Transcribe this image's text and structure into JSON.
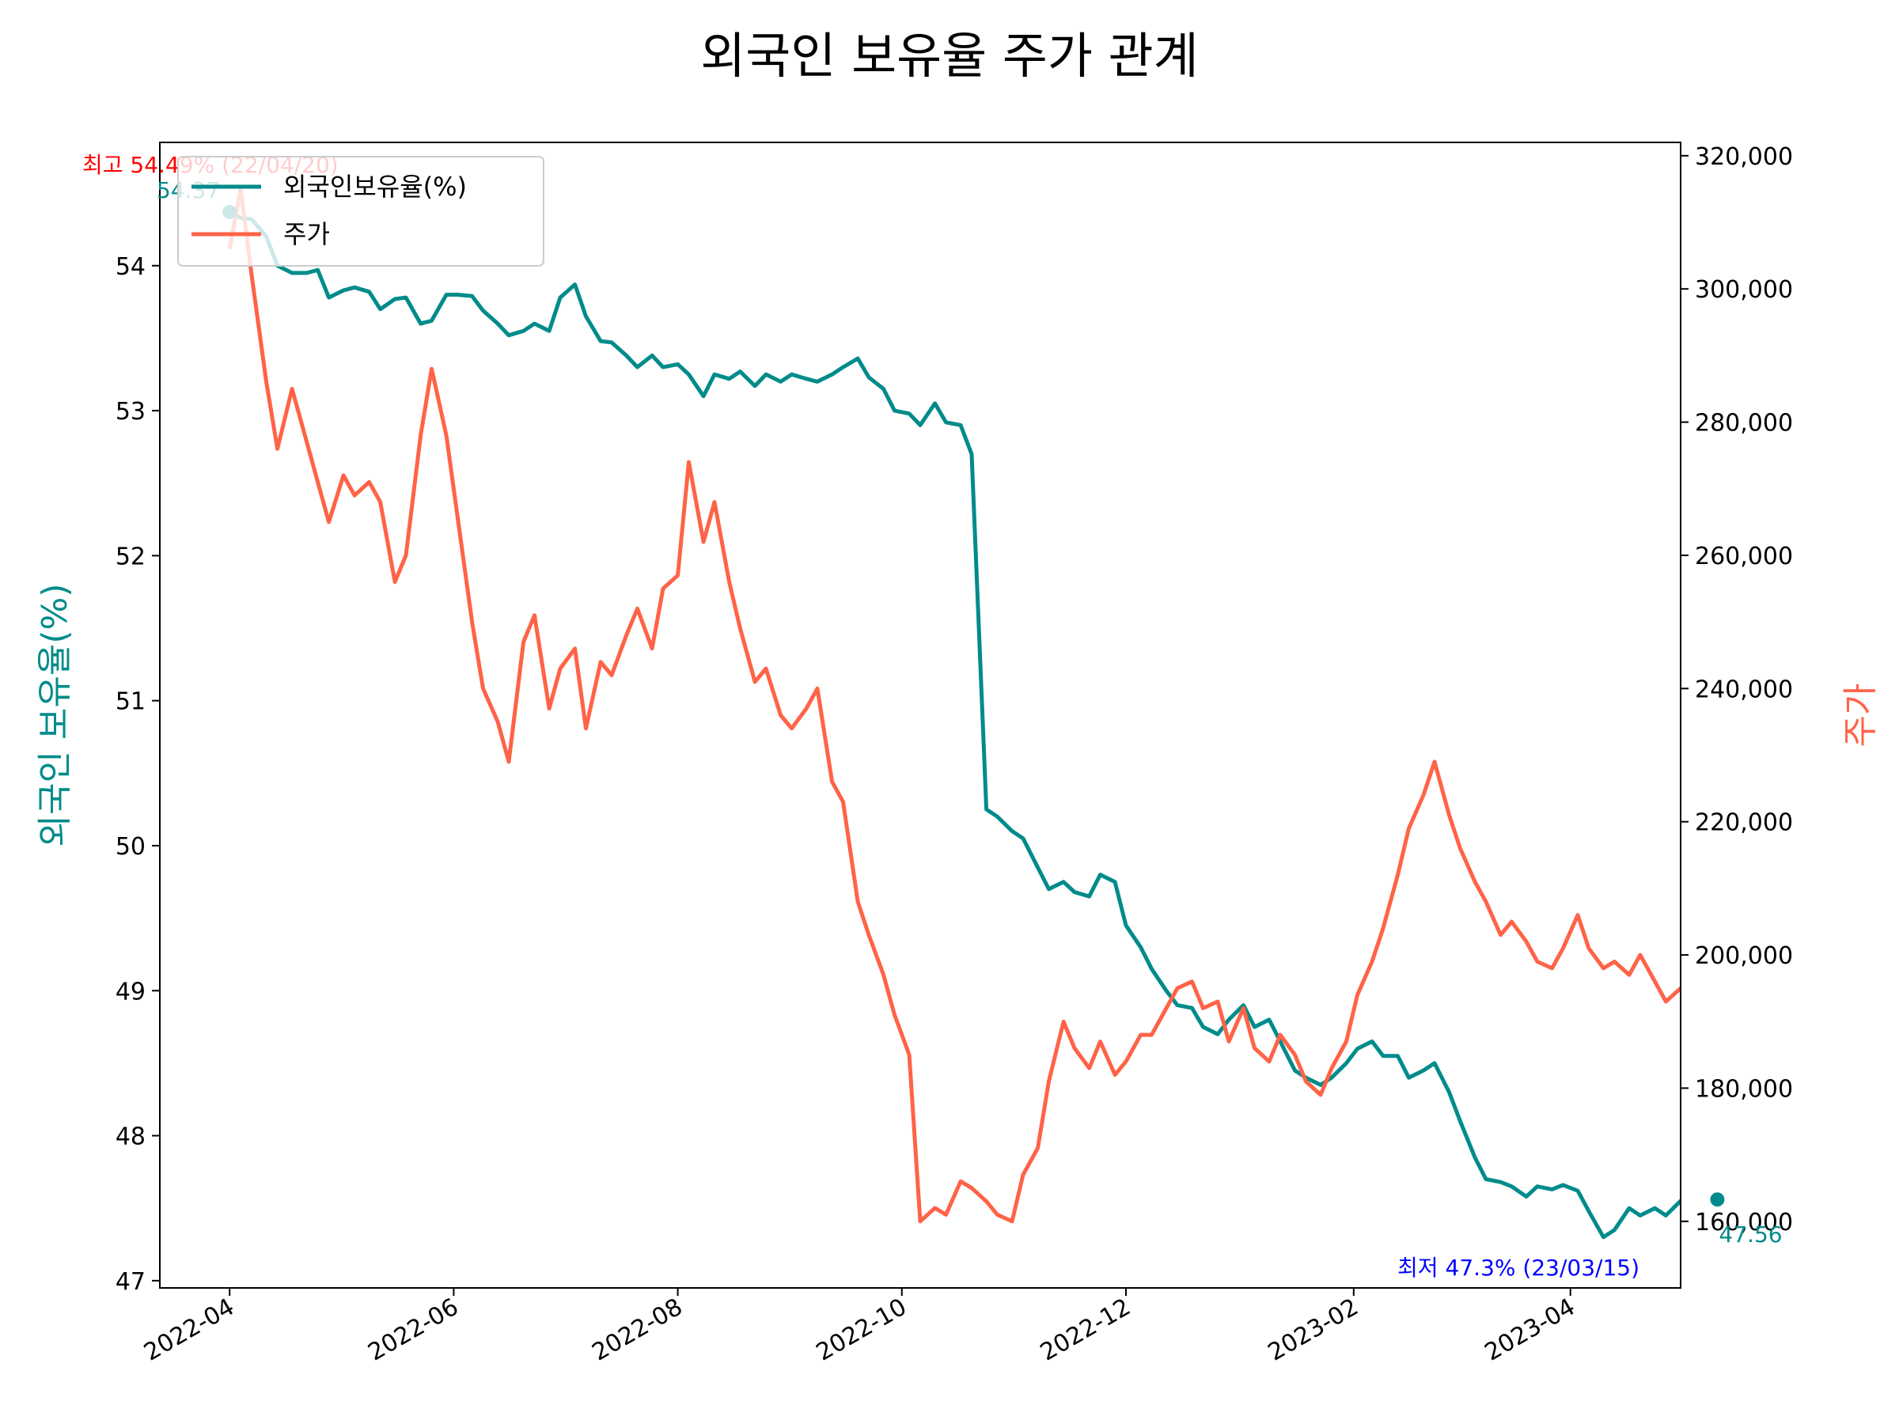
{
  "chart_data": {
    "type": "line",
    "title": "외국인 보유율 주가 관계",
    "ylabel": "외국인 보유율(%)",
    "ylabel_right": "주가",
    "x_ticks": [
      "2022-04",
      "2022-06",
      "2022-08",
      "2022-10",
      "2022-12",
      "2023-02",
      "2023-04"
    ],
    "y_ticks": [
      "47",
      "48",
      "49",
      "50",
      "51",
      "52",
      "53",
      "54"
    ],
    "y2_ticks": [
      "160,000",
      "180,000",
      "200,000",
      "220,000",
      "240,000",
      "260,000",
      "280,000",
      "300,000",
      "320,000"
    ],
    "ylim": [
      46.95,
      54.85
    ],
    "y2lim": [
      150000,
      322000
    ],
    "xlim": [
      "2022-03-13",
      "2023-05-01"
    ],
    "legend_position": "upper left",
    "colors": {
      "ownership": "#008b8b",
      "price": "#ff6347",
      "max": "#ff0000",
      "min": "#0000ff"
    },
    "series": [
      {
        "name": "외국인보유율(%)",
        "axis": "left",
        "points": [
          [
            "2022-04-01",
            54.37
          ],
          [
            "2022-04-04",
            54.33
          ],
          [
            "2022-04-07",
            54.32
          ],
          [
            "2022-04-11",
            54.2
          ],
          [
            "2022-04-14",
            54.0
          ],
          [
            "2022-04-18",
            53.95
          ],
          [
            "2022-04-22",
            53.95
          ],
          [
            "2022-04-25",
            53.97
          ],
          [
            "2022-04-28",
            53.78
          ],
          [
            "2022-05-02",
            53.83
          ],
          [
            "2022-05-05",
            53.85
          ],
          [
            "2022-05-09",
            53.82
          ],
          [
            "2022-05-12",
            53.7
          ],
          [
            "2022-05-16",
            53.77
          ],
          [
            "2022-05-19",
            53.78
          ],
          [
            "2022-05-23",
            53.6
          ],
          [
            "2022-05-26",
            53.62
          ],
          [
            "2022-05-30",
            53.8
          ],
          [
            "2022-06-02",
            53.8
          ],
          [
            "2022-06-06",
            53.79
          ],
          [
            "2022-06-09",
            53.69
          ],
          [
            "2022-06-13",
            53.6
          ],
          [
            "2022-06-16",
            53.52
          ],
          [
            "2022-06-20",
            53.55
          ],
          [
            "2022-06-23",
            53.6
          ],
          [
            "2022-06-27",
            53.55
          ],
          [
            "2022-06-30",
            53.78
          ],
          [
            "2022-07-04",
            53.87
          ],
          [
            "2022-07-07",
            53.65
          ],
          [
            "2022-07-11",
            53.48
          ],
          [
            "2022-07-14",
            53.47
          ],
          [
            "2022-07-18",
            53.38
          ],
          [
            "2022-07-21",
            53.3
          ],
          [
            "2022-07-25",
            53.38
          ],
          [
            "2022-07-28",
            53.3
          ],
          [
            "2022-08-01",
            53.32
          ],
          [
            "2022-08-04",
            53.25
          ],
          [
            "2022-08-08",
            53.1
          ],
          [
            "2022-08-11",
            53.25
          ],
          [
            "2022-08-15",
            53.22
          ],
          [
            "2022-08-18",
            53.27
          ],
          [
            "2022-08-22",
            53.17
          ],
          [
            "2022-08-25",
            53.25
          ],
          [
            "2022-08-29",
            53.2
          ],
          [
            "2022-09-01",
            53.25
          ],
          [
            "2022-09-05",
            53.22
          ],
          [
            "2022-09-08",
            53.2
          ],
          [
            "2022-09-12",
            53.25
          ],
          [
            "2022-09-15",
            53.3
          ],
          [
            "2022-09-19",
            53.36
          ],
          [
            "2022-09-22",
            53.23
          ],
          [
            "2022-09-26",
            53.15
          ],
          [
            "2022-09-29",
            53.0
          ],
          [
            "2022-10-03",
            52.98
          ],
          [
            "2022-10-06",
            52.9
          ],
          [
            "2022-10-10",
            53.05
          ],
          [
            "2022-10-13",
            52.92
          ],
          [
            "2022-10-17",
            52.9
          ],
          [
            "2022-10-20",
            52.7
          ],
          [
            "2022-10-24",
            50.25
          ],
          [
            "2022-10-27",
            50.2
          ],
          [
            "2022-10-31",
            50.1
          ],
          [
            "2022-11-03",
            50.05
          ],
          [
            "2022-11-07",
            49.85
          ],
          [
            "2022-11-10",
            49.7
          ],
          [
            "2022-11-14",
            49.75
          ],
          [
            "2022-11-17",
            49.68
          ],
          [
            "2022-11-21",
            49.65
          ],
          [
            "2022-11-24",
            49.8
          ],
          [
            "2022-11-28",
            49.75
          ],
          [
            "2022-12-01",
            49.45
          ],
          [
            "2022-12-05",
            49.3
          ],
          [
            "2022-12-08",
            49.15
          ],
          [
            "2022-12-12",
            49.0
          ],
          [
            "2022-12-15",
            48.9
          ],
          [
            "2022-12-19",
            48.88
          ],
          [
            "2022-12-22",
            48.75
          ],
          [
            "2022-12-26",
            48.7
          ],
          [
            "2022-12-29",
            48.8
          ],
          [
            "2023-01-02",
            48.9
          ],
          [
            "2023-01-05",
            48.75
          ],
          [
            "2023-01-09",
            48.8
          ],
          [
            "2023-01-12",
            48.65
          ],
          [
            "2023-01-16",
            48.45
          ],
          [
            "2023-01-19",
            48.4
          ],
          [
            "2023-01-23",
            48.35
          ],
          [
            "2023-01-26",
            48.4
          ],
          [
            "2023-01-30",
            48.5
          ],
          [
            "2023-02-02",
            48.6
          ],
          [
            "2023-02-06",
            48.65
          ],
          [
            "2023-02-09",
            48.55
          ],
          [
            "2023-02-13",
            48.55
          ],
          [
            "2023-02-16",
            48.4
          ],
          [
            "2023-02-20",
            48.45
          ],
          [
            "2023-02-23",
            48.5
          ],
          [
            "2023-02-27",
            48.3
          ],
          [
            "2023-03-02",
            48.1
          ],
          [
            "2023-03-06",
            47.85
          ],
          [
            "2023-03-09",
            47.7
          ],
          [
            "2023-03-13",
            47.68
          ],
          [
            "2023-03-16",
            47.65
          ],
          [
            "2023-03-20",
            47.58
          ],
          [
            "2023-03-23",
            47.65
          ],
          [
            "2023-03-27",
            47.63
          ],
          [
            "2023-03-30",
            47.66
          ],
          [
            "2023-04-03",
            47.62
          ],
          [
            "2023-04-06",
            47.48
          ],
          [
            "2023-04-10",
            47.3
          ],
          [
            "2023-04-13",
            47.35
          ],
          [
            "2023-04-17",
            47.5
          ],
          [
            "2023-04-20",
            47.45
          ],
          [
            "2023-04-24",
            47.5
          ],
          [
            "2023-04-27",
            47.45
          ],
          [
            "2023-05-01",
            47.55
          ],
          [
            "2023-05-04",
            47.45
          ],
          [
            "2023-05-08",
            47.62
          ],
          [
            "2023-05-11",
            47.56
          ]
        ]
      },
      {
        "name": "주가",
        "axis": "right",
        "points": [
          [
            "2022-04-01",
            306000
          ],
          [
            "2022-04-04",
            315000
          ],
          [
            "2022-04-07",
            302000
          ],
          [
            "2022-04-11",
            286000
          ],
          [
            "2022-04-14",
            276000
          ],
          [
            "2022-04-18",
            285000
          ],
          [
            "2022-04-22",
            277000
          ],
          [
            "2022-04-25",
            271000
          ],
          [
            "2022-04-28",
            265000
          ],
          [
            "2022-05-02",
            272000
          ],
          [
            "2022-05-05",
            269000
          ],
          [
            "2022-05-09",
            271000
          ],
          [
            "2022-05-12",
            268000
          ],
          [
            "2022-05-16",
            256000
          ],
          [
            "2022-05-19",
            260000
          ],
          [
            "2022-05-23",
            278000
          ],
          [
            "2022-05-26",
            288000
          ],
          [
            "2022-05-30",
            278000
          ],
          [
            "2022-06-02",
            266000
          ],
          [
            "2022-06-06",
            250000
          ],
          [
            "2022-06-09",
            240000
          ],
          [
            "2022-06-13",
            235000
          ],
          [
            "2022-06-16",
            229000
          ],
          [
            "2022-06-20",
            247000
          ],
          [
            "2022-06-23",
            251000
          ],
          [
            "2022-06-27",
            237000
          ],
          [
            "2022-06-30",
            243000
          ],
          [
            "2022-07-04",
            246000
          ],
          [
            "2022-07-07",
            234000
          ],
          [
            "2022-07-11",
            244000
          ],
          [
            "2022-07-14",
            242000
          ],
          [
            "2022-07-18",
            248000
          ],
          [
            "2022-07-21",
            252000
          ],
          [
            "2022-07-25",
            246000
          ],
          [
            "2022-07-28",
            255000
          ],
          [
            "2022-08-01",
            257000
          ],
          [
            "2022-08-04",
            274000
          ],
          [
            "2022-08-08",
            262000
          ],
          [
            "2022-08-11",
            268000
          ],
          [
            "2022-08-15",
            256000
          ],
          [
            "2022-08-18",
            249000
          ],
          [
            "2022-08-22",
            241000
          ],
          [
            "2022-08-25",
            243000
          ],
          [
            "2022-08-29",
            236000
          ],
          [
            "2022-09-01",
            234000
          ],
          [
            "2022-09-05",
            237000
          ],
          [
            "2022-09-08",
            240000
          ],
          [
            "2022-09-12",
            226000
          ],
          [
            "2022-09-15",
            223000
          ],
          [
            "2022-09-19",
            208000
          ],
          [
            "2022-09-22",
            203000
          ],
          [
            "2022-09-26",
            197000
          ],
          [
            "2022-09-29",
            191000
          ],
          [
            "2022-10-03",
            185000
          ],
          [
            "2022-10-06",
            160000
          ],
          [
            "2022-10-10",
            162000
          ],
          [
            "2022-10-13",
            161000
          ],
          [
            "2022-10-17",
            166000
          ],
          [
            "2022-10-20",
            165000
          ],
          [
            "2022-10-24",
            163000
          ],
          [
            "2022-10-27",
            161000
          ],
          [
            "2022-10-31",
            160000
          ],
          [
            "2022-11-03",
            167000
          ],
          [
            "2022-11-07",
            171000
          ],
          [
            "2022-11-10",
            181000
          ],
          [
            "2022-11-14",
            190000
          ],
          [
            "2022-11-17",
            186000
          ],
          [
            "2022-11-21",
            183000
          ],
          [
            "2022-11-24",
            187000
          ],
          [
            "2022-11-28",
            182000
          ],
          [
            "2022-12-01",
            184000
          ],
          [
            "2022-12-05",
            188000
          ],
          [
            "2022-12-08",
            188000
          ],
          [
            "2022-12-12",
            192000
          ],
          [
            "2022-12-15",
            195000
          ],
          [
            "2022-12-19",
            196000
          ],
          [
            "2022-12-22",
            192000
          ],
          [
            "2022-12-26",
            193000
          ],
          [
            "2022-12-29",
            187000
          ],
          [
            "2023-01-02",
            192000
          ],
          [
            "2023-01-05",
            186000
          ],
          [
            "2023-01-09",
            184000
          ],
          [
            "2023-01-12",
            188000
          ],
          [
            "2023-01-16",
            185000
          ],
          [
            "2023-01-19",
            181000
          ],
          [
            "2023-01-23",
            179000
          ],
          [
            "2023-01-26",
            183000
          ],
          [
            "2023-01-30",
            187000
          ],
          [
            "2023-02-02",
            194000
          ],
          [
            "2023-02-06",
            199000
          ],
          [
            "2023-02-09",
            204000
          ],
          [
            "2023-02-13",
            212000
          ],
          [
            "2023-02-16",
            219000
          ],
          [
            "2023-02-20",
            224000
          ],
          [
            "2023-02-23",
            229000
          ],
          [
            "2023-02-27",
            221000
          ],
          [
            "2023-03-02",
            216000
          ],
          [
            "2023-03-06",
            211000
          ],
          [
            "2023-03-09",
            208000
          ],
          [
            "2023-03-13",
            203000
          ],
          [
            "2023-03-16",
            205000
          ],
          [
            "2023-03-20",
            202000
          ],
          [
            "2023-03-23",
            199000
          ],
          [
            "2023-03-27",
            198000
          ],
          [
            "2023-03-30",
            201000
          ],
          [
            "2023-04-03",
            206000
          ],
          [
            "2023-04-06",
            201000
          ],
          [
            "2023-04-10",
            198000
          ],
          [
            "2023-04-13",
            199000
          ],
          [
            "2023-04-17",
            197000
          ],
          [
            "2023-04-20",
            200000
          ],
          [
            "2023-04-24",
            196000
          ],
          [
            "2023-04-27",
            193000
          ],
          [
            "2023-05-01",
            195000
          ],
          [
            "2023-05-04",
            192000
          ],
          [
            "2023-05-08",
            198000
          ],
          [
            "2023-05-11",
            199000
          ]
        ]
      }
    ],
    "annotations": [
      {
        "name": "max",
        "label": "최고 54.49% (22/04/20)",
        "x": "2022-04-20",
        "y": 54.49,
        "color": "#ff0000"
      },
      {
        "name": "min",
        "label": "최저 47.3% (23/03/15)",
        "x": "2023-03-15",
        "y": 47.3,
        "color": "#0000ff"
      },
      {
        "name": "start",
        "label": "54.37",
        "x": "2022-04-01",
        "y": 54.37,
        "color": "#008b8b"
      },
      {
        "name": "end",
        "label": "47.56",
        "x": "2023-05-11",
        "y": 47.56,
        "color": "#008b8b"
      }
    ]
  }
}
